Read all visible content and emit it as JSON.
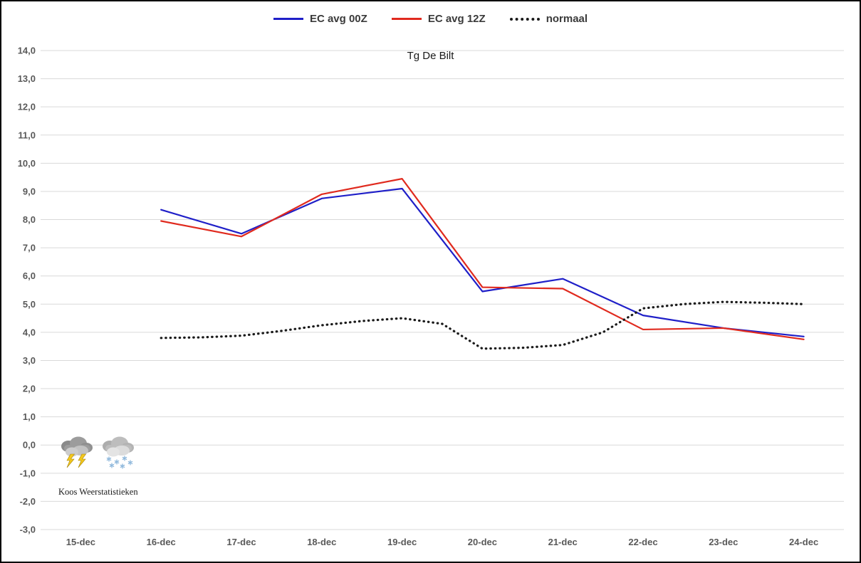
{
  "branding": {
    "text": "Koos Weerstatistieken"
  },
  "icons": [
    {
      "name": "storm-cloud-icon"
    },
    {
      "name": "snow-cloud-icon"
    }
  ],
  "chart_data": {
    "type": "line",
    "title": "Tg De Bilt",
    "categories": [
      "15-dec",
      "16-dec",
      "17-dec",
      "18-dec",
      "19-dec",
      "20-dec",
      "21-dec",
      "22-dec",
      "23-dec",
      "24-dec"
    ],
    "ylim": [
      -3,
      14
    ],
    "ytick_step": 1,
    "decimal_separator": ",",
    "grid": true,
    "legend_position": "top-center",
    "grid_color": "#d9d9d9",
    "series": [
      {
        "name": "EC avg 00Z",
        "color": "#1f1fc8",
        "style": "solid",
        "x": [
          1,
          2,
          3,
          4,
          5,
          6,
          7,
          8,
          9
        ],
        "values": [
          8.35,
          7.5,
          8.75,
          9.1,
          5.45,
          5.9,
          4.6,
          4.15,
          3.85
        ]
      },
      {
        "name": "EC avg 12Z",
        "color": "#e02a1e",
        "style": "solid",
        "x": [
          1,
          2,
          3,
          4,
          5,
          6,
          7,
          8,
          9
        ],
        "values": [
          7.95,
          7.4,
          8.9,
          9.45,
          5.6,
          5.55,
          4.1,
          4.15,
          3.75
        ]
      },
      {
        "name": "normaal",
        "color": "#1a1a1a",
        "style": "dotted",
        "x": [
          1,
          1.5,
          2,
          2.5,
          3,
          3.5,
          4,
          4.5,
          5,
          5.5,
          6,
          6.5,
          7,
          7.5,
          8,
          8.5,
          9
        ],
        "values": [
          3.8,
          3.82,
          3.88,
          4.05,
          4.25,
          4.4,
          4.5,
          4.3,
          3.42,
          3.45,
          3.55,
          4.0,
          4.85,
          5.0,
          5.08,
          5.05,
          5.0
        ]
      }
    ]
  }
}
